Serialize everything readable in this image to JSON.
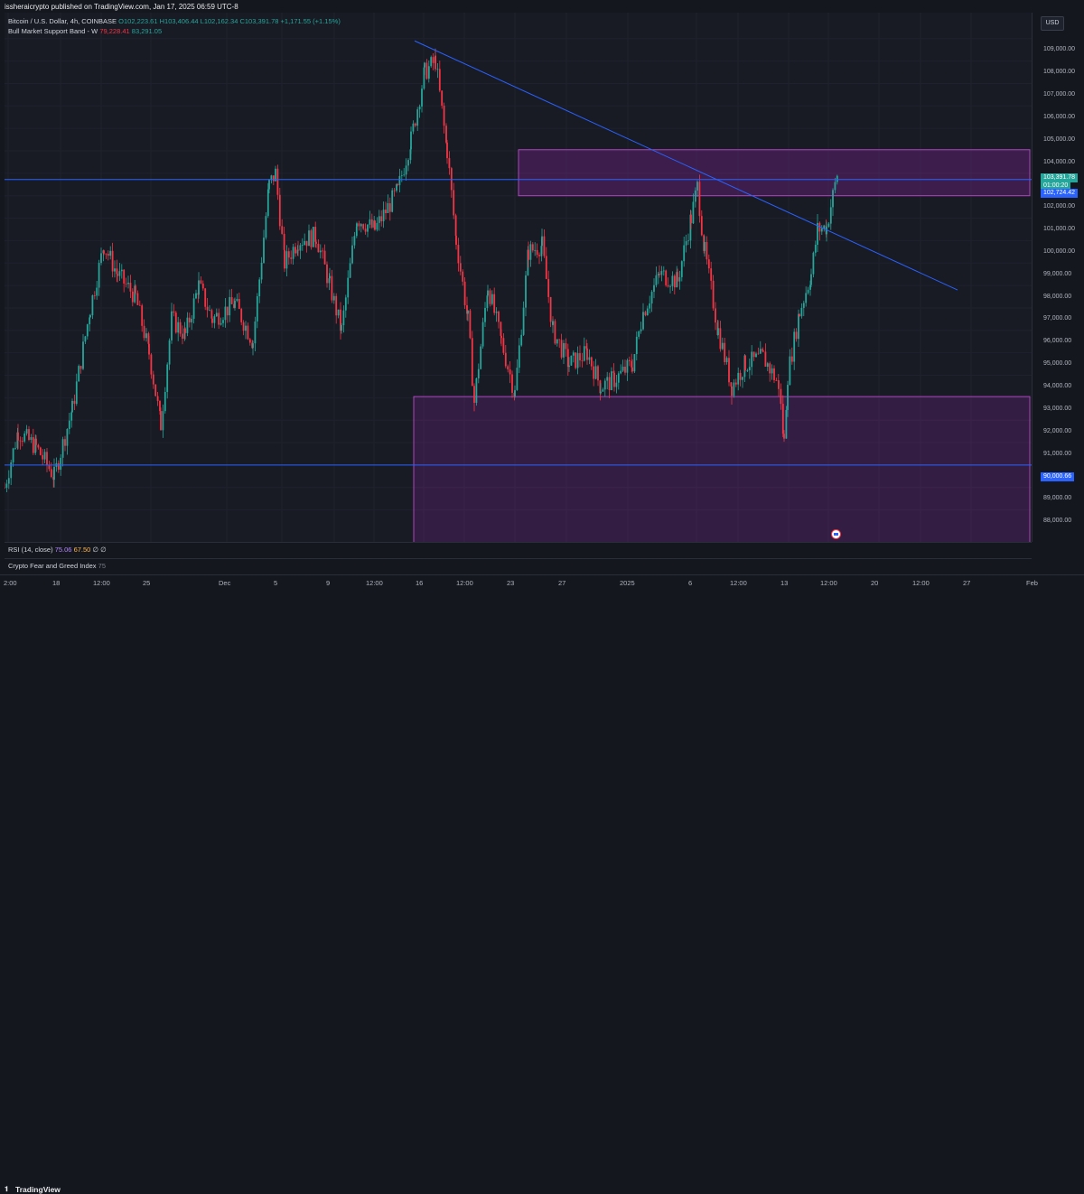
{
  "publisher": "issheraicrypto published on TradingView.com, Jan 17, 2025 06:59 UTC-8",
  "legend": {
    "symbol": "Bitcoin / U.S. Dollar, 4h, COINBASE",
    "open": "O102,223.61",
    "high": "H103,406.44",
    "low": "L102,162.34",
    "close": "C103,391.78",
    "change": "+1,171.55 (+1.15%)",
    "indicator_name": "Bull Market Support Band - W",
    "indicator_val1": "79,228.41",
    "indicator_val2": "83,291.05"
  },
  "currency": "USD",
  "price_labels": [
    "109,000.00",
    "108,000.00",
    "107,000.00",
    "106,000.00",
    "105,000.00",
    "104,000.00",
    "102,000.00",
    "101,000.00",
    "100,000.00",
    "99,000.00",
    "98,000.00",
    "97,000.00",
    "96,000.00",
    "95,000.00",
    "94,000.00",
    "93,000.00",
    "92,000.00",
    "91,000.00",
    "89,000.00",
    "88,000.00"
  ],
  "tags": {
    "last_price": "103,391.78",
    "countdown": "01:00:20",
    "level_high": "102,724.42",
    "level_low": "90,000.66"
  },
  "rsi": {
    "label": "RSI (14, close)",
    "v1": "75.06",
    "v2": "67.50",
    "v3": "∅"
  },
  "fng": {
    "label": "Crypto Fear and Greed Index",
    "value": "75"
  },
  "time_labels": [
    "2:00",
    "18",
    "12:00",
    "25",
    "Dec",
    "5",
    "9",
    "12:00",
    "16",
    "12:00",
    "23",
    "27",
    "2025",
    "6",
    "12:00",
    "13",
    "12:00",
    "20",
    "12:00",
    "27",
    "Feb"
  ],
  "brand": "TradingView",
  "colors": {
    "up": "#26a69a",
    "down": "#f23645",
    "line": "#2962ff",
    "zone": "#9c27b0"
  },
  "chart_data": {
    "type": "candlestick",
    "x_range": [
      "Nov 15 2024",
      "Jan 17 2025"
    ],
    "ylim": [
      87300,
      110000
    ],
    "horizontal_levels": [
      102724.42,
      90000.66
    ],
    "zones": [
      {
        "from": 102000,
        "to": 104050
      },
      {
        "from": 87300,
        "to": 93050
      }
    ],
    "trendline": {
      "start": 108900,
      "end": 97800
    },
    "last_close": 103391.78
  }
}
